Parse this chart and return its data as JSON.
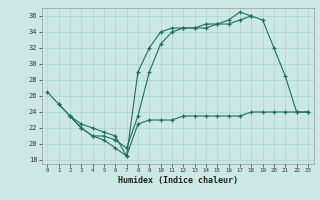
{
  "xlabel": "Humidex (Indice chaleur)",
  "bg_color": "#cce8e4",
  "line_color": "#1e6e60",
  "grid_color": "#aad4ce",
  "xlim": [
    -0.5,
    23.5
  ],
  "ylim": [
    17.5,
    37.0
  ],
  "xticks": [
    0,
    1,
    2,
    3,
    4,
    5,
    6,
    7,
    8,
    9,
    10,
    11,
    12,
    13,
    14,
    15,
    16,
    17,
    18,
    19,
    20,
    21,
    22,
    23
  ],
  "yticks": [
    18,
    20,
    22,
    24,
    26,
    28,
    30,
    32,
    34,
    36
  ],
  "line1_x": [
    0,
    1,
    2,
    3,
    4,
    5,
    6,
    7,
    8,
    9,
    10,
    11,
    12,
    13,
    14,
    15,
    16,
    17,
    18
  ],
  "line1_y": [
    26.5,
    25.0,
    23.5,
    22.0,
    21.0,
    20.5,
    19.5,
    18.5,
    29.0,
    32.0,
    34.0,
    34.5,
    34.5,
    34.5,
    35.0,
    35.0,
    35.5,
    36.5,
    36.0
  ],
  "line2_x": [
    1,
    2,
    3,
    4,
    5,
    6,
    7,
    8,
    9,
    10,
    11,
    12,
    13,
    14,
    15,
    16,
    17,
    18,
    19,
    20,
    21,
    22,
    23
  ],
  "line2_y": [
    25.0,
    23.5,
    22.0,
    21.0,
    21.0,
    20.5,
    19.5,
    23.5,
    29.0,
    32.5,
    34.0,
    34.5,
    34.5,
    34.5,
    35.0,
    35.0,
    35.5,
    36.0,
    35.5,
    32.0,
    28.5,
    24.0,
    24.0
  ],
  "line3_x": [
    2,
    3,
    4,
    5,
    6,
    7,
    8,
    9,
    10,
    11,
    12,
    13,
    14,
    15,
    16,
    17,
    18,
    19,
    20,
    21,
    22,
    23
  ],
  "line3_y": [
    23.5,
    22.5,
    22.0,
    21.5,
    21.0,
    18.5,
    22.5,
    23.0,
    23.0,
    23.0,
    23.5,
    23.5,
    23.5,
    23.5,
    23.5,
    23.5,
    24.0,
    24.0,
    24.0,
    24.0,
    24.0,
    24.0
  ]
}
